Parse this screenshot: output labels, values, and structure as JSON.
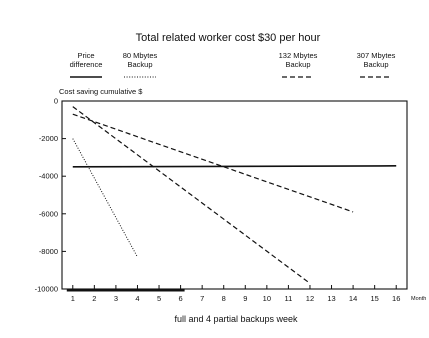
{
  "chart_data": {
    "type": "line",
    "title": "Total related worker cost $30 per hour",
    "ylabel": "Cost saving cumulative $",
    "xlabel": "full and 4 partial backups week",
    "x_units": "Month",
    "xlim": [
      0.5,
      16.5
    ],
    "ylim": [
      -10000,
      0
    ],
    "x_ticks": [
      1,
      2,
      3,
      4,
      5,
      6,
      7,
      8,
      9,
      10,
      11,
      12,
      13,
      14,
      15,
      16
    ],
    "y_ticks": [
      0,
      -2000,
      -4000,
      -6000,
      -8000,
      -10000
    ],
    "grid": false,
    "legend_position": "top",
    "series": [
      {
        "name": "Price difference",
        "style": "solid",
        "x": [
          1,
          16
        ],
        "y": [
          -3500,
          -3450
        ]
      },
      {
        "name": "80 Mbytes Backup",
        "style": "dotted",
        "x": [
          1,
          4
        ],
        "y": [
          -2000,
          -8300
        ]
      },
      {
        "name": "132 Mbytes Backup",
        "style": "dashed",
        "x": [
          1,
          12
        ],
        "y": [
          -300,
          -9700
        ]
      },
      {
        "name": "307 Mbytes Backup",
        "style": "dashed",
        "x": [
          1,
          14
        ],
        "y": [
          -700,
          -5900
        ]
      }
    ]
  }
}
